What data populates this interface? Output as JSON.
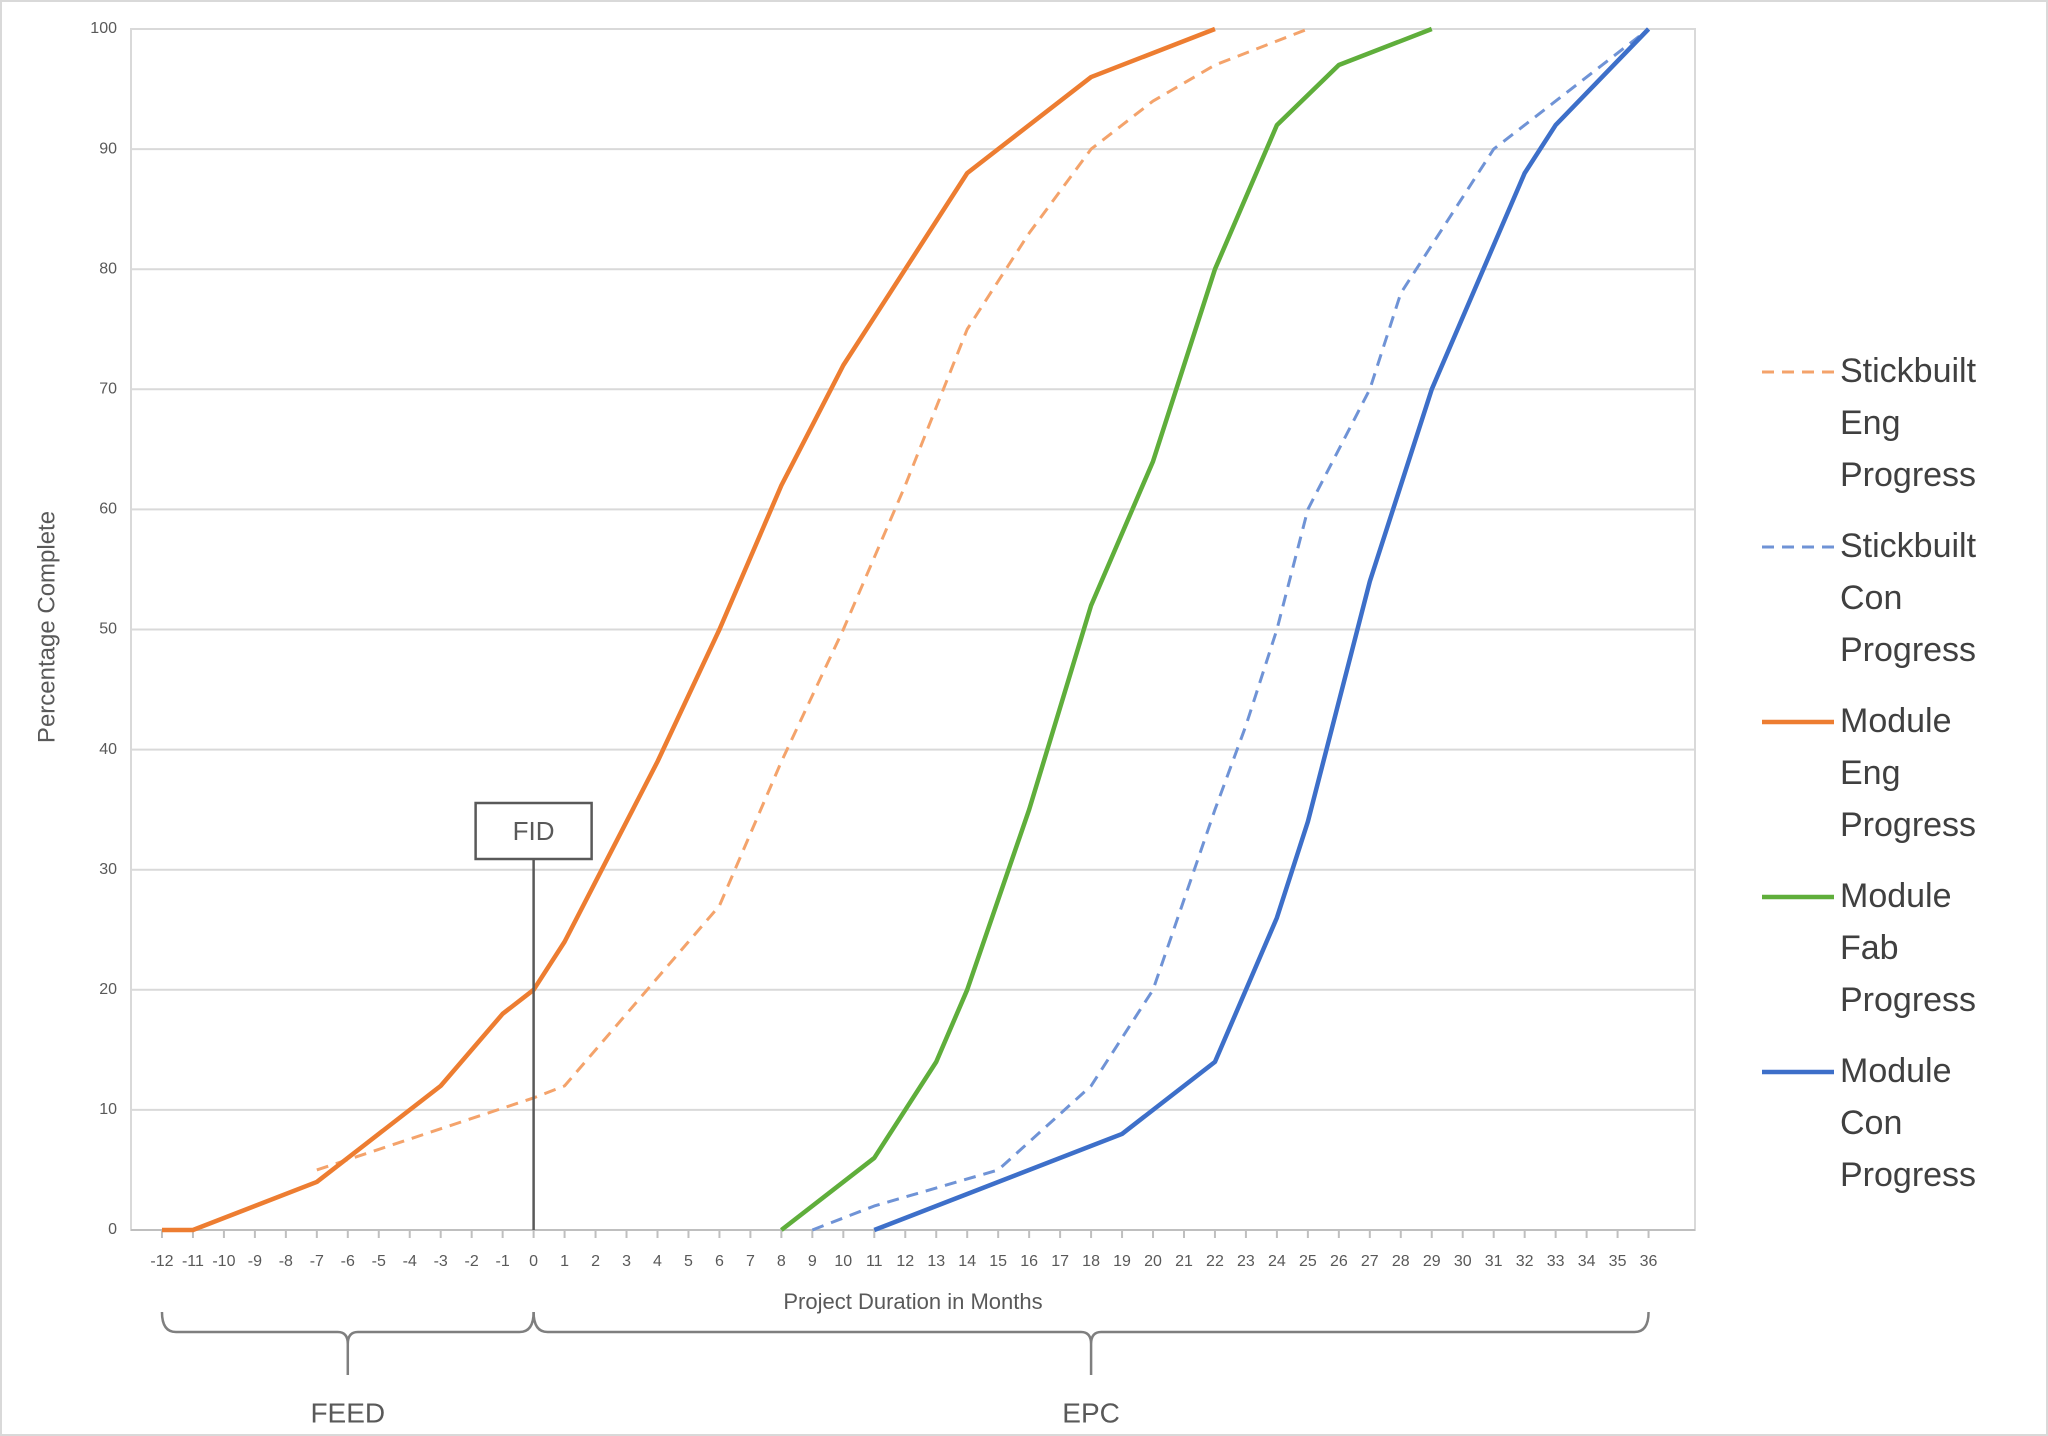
{
  "chart_data": {
    "type": "line",
    "xlabel": "Project Duration in Months",
    "ylabel": "Percentage Complete",
    "xlim": [
      -13,
      37.5
    ],
    "ylim": [
      0,
      100
    ],
    "xticks": [
      -12,
      -11,
      -10,
      -9,
      -8,
      -7,
      -6,
      -5,
      -4,
      -3,
      -2,
      -1,
      0,
      1,
      2,
      3,
      4,
      5,
      6,
      7,
      8,
      9,
      10,
      11,
      12,
      13,
      14,
      15,
      16,
      17,
      18,
      19,
      20,
      21,
      22,
      23,
      24,
      25,
      26,
      27,
      28,
      29,
      30,
      31,
      32,
      33,
      34,
      35,
      36
    ],
    "yticks": [
      0,
      10,
      20,
      30,
      40,
      50,
      60,
      70,
      80,
      90,
      100
    ],
    "grid": true,
    "series": [
      {
        "name": "Stickbuilt Eng Progress",
        "color": "#f4a36b",
        "dashed": true,
        "x": [
          -7,
          0,
          1,
          3,
          5,
          6,
          8,
          10,
          12,
          14,
          16,
          18,
          20,
          22,
          25
        ],
        "values": [
          5,
          11,
          12,
          18,
          24,
          27,
          39,
          50,
          62,
          75,
          83,
          90,
          94,
          97,
          100
        ]
      },
      {
        "name": "Stickbuilt Con Progress",
        "color": "#6f93d6",
        "dashed": true,
        "x": [
          9,
          11,
          15,
          18,
          20,
          22,
          23,
          24,
          25,
          27,
          28,
          31,
          33,
          36
        ],
        "values": [
          0,
          2,
          5,
          12,
          20,
          35,
          42,
          50,
          60,
          70,
          78,
          90,
          94,
          100
        ]
      },
      {
        "name": "Module Eng Progress",
        "color": "#ed7d31",
        "dashed": false,
        "x": [
          -12,
          -11,
          -7,
          -3,
          -1,
          0,
          1,
          2,
          4,
          6,
          8,
          10,
          14,
          18,
          22
        ],
        "values": [
          0,
          0,
          4,
          12,
          18,
          20,
          24,
          29,
          39,
          50,
          62,
          72,
          88,
          96,
          100
        ]
      },
      {
        "name": "Module Fab Progress",
        "color": "#5fae3b",
        "dashed": false,
        "x": [
          8,
          11,
          13,
          14,
          16,
          18,
          20,
          22,
          24,
          26,
          29
        ],
        "values": [
          0,
          6,
          14,
          20,
          35,
          52,
          64,
          80,
          92,
          97,
          100
        ]
      },
      {
        "name": "Module Con Progress",
        "color": "#3d6fc9",
        "dashed": false,
        "x": [
          11,
          14,
          19,
          22,
          24,
          25,
          27,
          29,
          32,
          33,
          36
        ],
        "values": [
          0,
          3,
          8,
          14,
          26,
          34,
          54,
          70,
          88,
          92,
          100
        ]
      }
    ],
    "annotations": [
      {
        "text": "FID",
        "x": 0
      }
    ],
    "phases": [
      {
        "label": "FEED",
        "start": -12,
        "end": 0
      },
      {
        "label": "EPC",
        "start": 0,
        "end": 36
      }
    ]
  }
}
